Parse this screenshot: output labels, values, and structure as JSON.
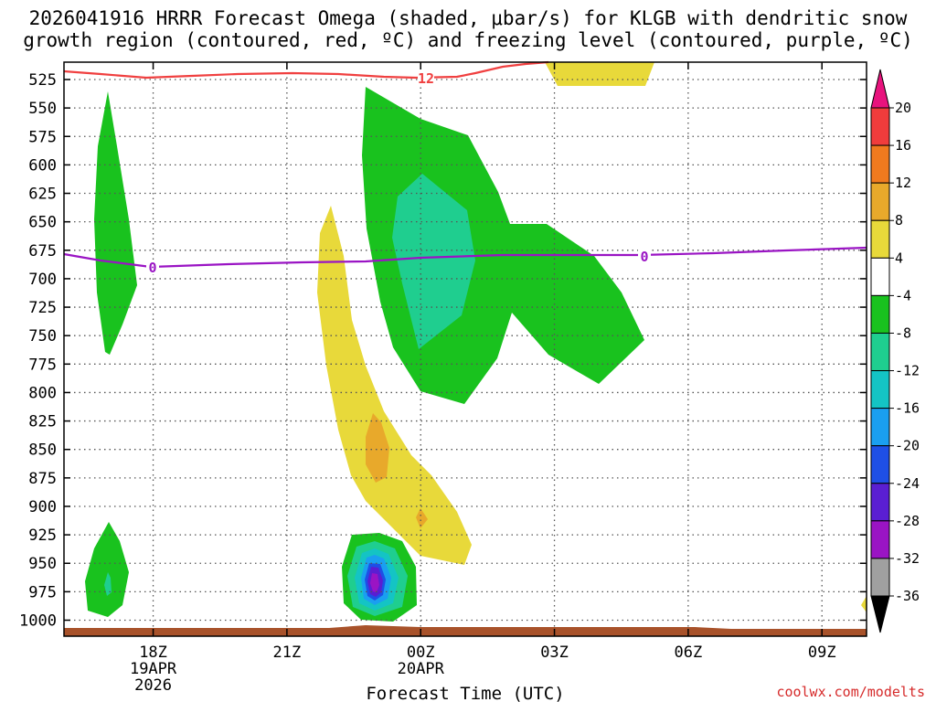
{
  "chart_data": {
    "type": "contour",
    "title_line1": "2026041916 HRRR Forecast Omega (shaded, μbar/s) for KLGB with dendritic snow",
    "title_line2": "growth region (contoured, red, ºC) and freezing level (contoured, purple, ºC)",
    "xlabel": "Forecast Time (UTC)",
    "credit": "coolwx.com/modelts",
    "y_ticks": [
      "525",
      "550",
      "575",
      "600",
      "625",
      "650",
      "675",
      "700",
      "725",
      "750",
      "775",
      "800",
      "825",
      "850",
      "875",
      "900",
      "925",
      "950",
      "975",
      "1000"
    ],
    "x_ticks": [
      {
        "hour": 18,
        "label": "18Z",
        "sub1": "19APR",
        "sub2": "2026"
      },
      {
        "hour": 21,
        "label": "21Z",
        "sub1": "",
        "sub2": ""
      },
      {
        "hour": 24,
        "label": "00Z",
        "sub1": "20APR",
        "sub2": ""
      },
      {
        "hour": 27,
        "label": "03Z",
        "sub1": "",
        "sub2": ""
      },
      {
        "hour": 30,
        "label": "06Z",
        "sub1": "",
        "sub2": ""
      },
      {
        "hour": 33,
        "label": "09Z",
        "sub1": "",
        "sub2": ""
      }
    ],
    "x_range_hours": [
      16.0,
      34.0
    ],
    "colorbar": {
      "labels": [
        "20",
        "16",
        "12",
        "8",
        "4",
        "-4",
        "-8",
        "-12",
        "-16",
        "-20",
        "-24",
        "-28",
        "-32",
        "-36"
      ],
      "colors": [
        "#e8137d",
        "#f03c3c",
        "#f07a1e",
        "#e8a92b",
        "#e8d93a",
        "#ffffff",
        "#19c21e",
        "#1fce8f",
        "#14c4c4",
        "#1a9ff0",
        "#1e4fe6",
        "#5a1ed2",
        "#9a14c4",
        "#a0a0a0",
        "#000000"
      ]
    },
    "contour_labels": {
      "dgz": "12",
      "freezing": "0"
    },
    "colors": {
      "dgz_line": "#f04040",
      "freezing_line": "#9a14c4",
      "ground": "#a8522a"
    }
  }
}
